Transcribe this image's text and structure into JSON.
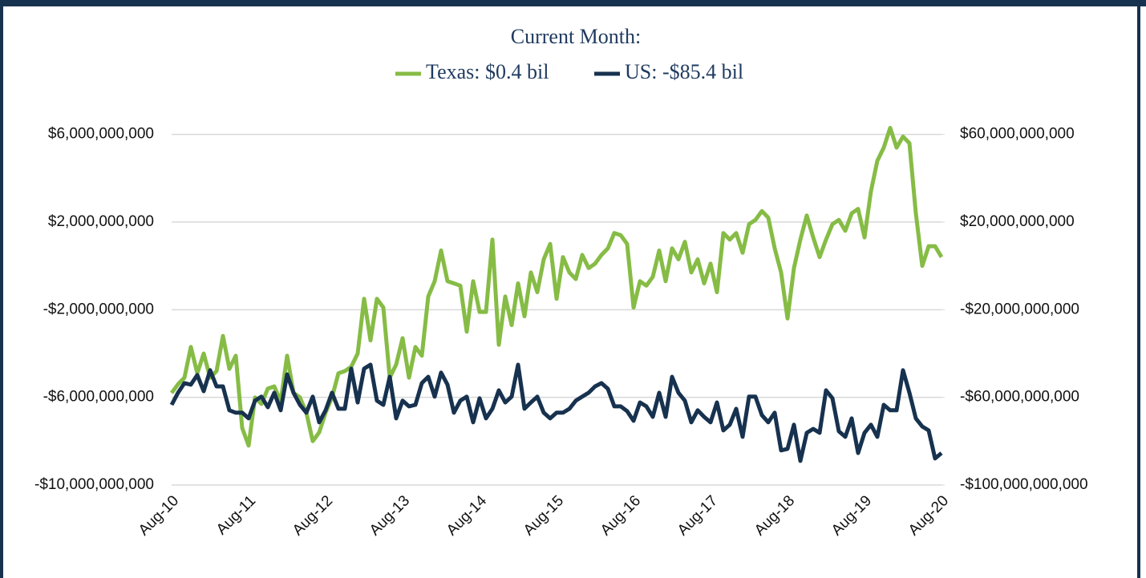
{
  "chart_data": {
    "type": "line",
    "title": "Current Month:",
    "categories": [
      "Aug-10",
      null,
      null,
      null,
      null,
      null,
      null,
      null,
      null,
      null,
      null,
      null,
      "Aug-11",
      null,
      null,
      null,
      null,
      null,
      null,
      null,
      null,
      null,
      null,
      null,
      "Aug-12",
      null,
      null,
      null,
      null,
      null,
      null,
      null,
      null,
      null,
      null,
      null,
      "Aug-13",
      null,
      null,
      null,
      null,
      null,
      null,
      null,
      null,
      null,
      null,
      null,
      "Aug-14",
      null,
      null,
      null,
      null,
      null,
      null,
      null,
      null,
      null,
      null,
      null,
      "Aug-15",
      null,
      null,
      null,
      null,
      null,
      null,
      null,
      null,
      null,
      null,
      null,
      "Aug-16",
      null,
      null,
      null,
      null,
      null,
      null,
      null,
      null,
      null,
      null,
      null,
      "Aug-17",
      null,
      null,
      null,
      null,
      null,
      null,
      null,
      null,
      null,
      null,
      null,
      "Aug-18",
      null,
      null,
      null,
      null,
      null,
      null,
      null,
      null,
      null,
      null,
      null,
      "Aug-19",
      null,
      null,
      null,
      null,
      null,
      null,
      null,
      null,
      null,
      null,
      null,
      "Aug-20"
    ],
    "series": [
      {
        "name": "Texas: $0.4 bil",
        "color": "#86bc45",
        "axis": "y",
        "values": [
          -5800000000.0,
          -5400000000.0,
          -5100000000.0,
          -3700000000.0,
          -4900000000.0,
          -4000000000.0,
          -5100000000.0,
          -4800000000.0,
          -3200000000.0,
          -4700000000.0,
          -4100000000.0,
          -7400000000.0,
          -8200000000.0,
          -6000000000.0,
          -6300000000.0,
          -5600000000.0,
          -5500000000.0,
          -6200000000.0,
          -4100000000.0,
          -5800000000.0,
          -6000000000.0,
          -6700000000.0,
          -8000000000.0,
          -7600000000.0,
          -6700000000.0,
          -6000000000.0,
          -4900000000.0,
          -4800000000.0,
          -4600000000.0,
          -4000000000.0,
          -1500000000.0,
          -3400000000.0,
          -1500000000.0,
          -1900000000.0,
          -5100000000.0,
          -4500000000.0,
          -3300000000.0,
          -5100000000.0,
          -3700000000.0,
          -4100000000.0,
          -1400000000.0,
          -700000000.0,
          700000000.0,
          -700000000.0,
          -800000000.0,
          -900000000.0,
          -3000000000.0,
          -700000000.0,
          -2100000000.0,
          -2100000000.0,
          1200000000.0,
          -3600000000.0,
          -1400000000.0,
          -2700000000.0,
          -800000000.0,
          -2300000000.0,
          -300000000.0,
          -1200000000.0,
          300000000.0,
          1000000000.0,
          -1500000000.0,
          400000000.0,
          -300000000.0,
          -600000000.0,
          500000000.0,
          -100000000.0,
          100000000.0,
          500000000.0,
          800000000.0,
          1500000000.0,
          1400000000.0,
          1000000000.0,
          -1900000000.0,
          -700000000.0,
          -900000000.0,
          -500000000.0,
          700000000.0,
          -700000000.0,
          800000000.0,
          300000000.0,
          1100000000.0,
          -300000000.0,
          300000000.0,
          -800000000.0,
          100000000.0,
          -1200000000.0,
          1500000000.0,
          1200000000.0,
          1500000000.0,
          600000000.0,
          1900000000.0,
          2100000000.0,
          2500000000.0,
          2200000000.0,
          800000000.0,
          -300000000.0,
          -2400000000.0,
          -100000000.0,
          1200000000.0,
          2300000000.0,
          1300000000.0,
          400000000.0,
          1200000000.0,
          1900000000.0,
          2100000000.0,
          1600000000.0,
          2400000000.0,
          2600000000.0,
          1300000000.0,
          3400000000.0,
          4800000000.0,
          5400000000.0,
          6300000000.0,
          5400000000.0,
          5900000000.0,
          5600000000.0,
          2400000000.0,
          0,
          900000000.0,
          900000000.0,
          400000000.0
        ]
      },
      {
        "name": "US: -$85.4 bil",
        "color": "#17324f",
        "axis": "y2",
        "values": [
          -63400000000.0,
          -57900000000.0,
          -53500000000.0,
          -54200000000.0,
          -49800000000.0,
          -57200000000.0,
          -47600000000.0,
          -55000000000.0,
          -55000000000.0,
          -65900000000.0,
          -67000000000.0,
          -67000000000.0,
          -69600000000.0,
          -61500000000.0,
          -59700000000.0,
          -64500000000.0,
          -57900000000.0,
          -65900000000.0,
          -49500000000.0,
          -57900000000.0,
          -63400000000.0,
          -67000000000.0,
          -59700000000.0,
          -71400000000.0,
          -65900000000.0,
          -57900000000.0,
          -65200000000.0,
          -65200000000.0,
          -46900000000.0,
          -62300000000.0,
          -46900000000.0,
          -45100000000.0,
          -61500000000.0,
          -63400000000.0,
          -50600000000.0,
          -69600000000.0,
          -61500000000.0,
          -64100000000.0,
          -63400000000.0,
          -53500000000.0,
          -50600000000.0,
          -59700000000.0,
          -48700000000.0,
          -54200000000.0,
          -67000000000.0,
          -61500000000.0,
          -59700000000.0,
          -71400000000.0,
          -60400000000.0,
          -69600000000.0,
          -65200000000.0,
          -56800000000.0,
          -62300000000.0,
          -59700000000.0,
          -45100000000.0,
          -65200000000.0,
          -62300000000.0,
          -59700000000.0,
          -67000000000.0,
          -69600000000.0,
          -67000000000.0,
          -67000000000.0,
          -65200000000.0,
          -61500000000.0,
          -59700000000.0,
          -57900000000.0,
          -55000000000.0,
          -53500000000.0,
          -56100000000.0,
          -64100000000.0,
          -64100000000.0,
          -66300000000.0,
          -70700000000.0,
          -62300000000.0,
          -64100000000.0,
          -68900000000.0,
          -57900000000.0,
          -68900000000.0,
          -50600000000.0,
          -57900000000.0,
          -61500000000.0,
          -71400000000.0,
          -65900000000.0,
          -68900000000.0,
          -71400000000.0,
          -62300000000.0,
          -75100000000.0,
          -72500000000.0,
          -65200000000.0,
          -78000000000.0,
          -59700000000.0,
          -59700000000.0,
          -68100000000.0,
          -71400000000.0,
          -67000000000.0,
          -84200000000.0,
          -83500000000.0,
          -72500000000.0,
          -89000000000.0,
          -76200000000.0,
          -74400000000.0,
          -76200000000.0,
          -56800000000.0,
          -60400000000.0,
          -75500000000.0,
          -78000000000.0,
          -69600000000.0,
          -85400000000.0,
          -76200000000.0,
          -72500000000.0,
          -78000000000.0,
          -63400000000.0,
          -65900000000.0,
          -65900000000.0,
          -47600000000.0,
          -57900000000.0,
          -69600000000.0,
          -73300000000.0,
          -75100000000.0,
          -87900000000.0,
          -85400000000.0
        ]
      }
    ],
    "ylim": [
      -10000000000.0,
      6500000000.0
    ],
    "yticks": [
      {
        "value": 6000000000.0,
        "label": "$6,000,000,000"
      },
      {
        "value": 2000000000.0,
        "label": "$2,000,000,000"
      },
      {
        "value": -2000000000.0,
        "label": "-$2,000,000,000"
      },
      {
        "value": -6000000000.0,
        "label": "-$6,000,000,000"
      },
      {
        "value": -10000000000.0,
        "label": "-$10,000,000,000"
      }
    ],
    "y2lim": [
      -100000000000.0,
      65000000000.0
    ],
    "y2ticks": [
      {
        "value": 60000000000.0,
        "label": "$60,000,000,000"
      },
      {
        "value": 20000000000.0,
        "label": "$20,000,000,000"
      },
      {
        "value": -20000000000.0,
        "label": "-$20,000,000,000"
      },
      {
        "value": -60000000000.0,
        "label": "-$60,000,000,000"
      },
      {
        "value": -100000000000.0,
        "label": "-$100,000,000,000"
      }
    ],
    "grid": true,
    "legend": "top"
  }
}
